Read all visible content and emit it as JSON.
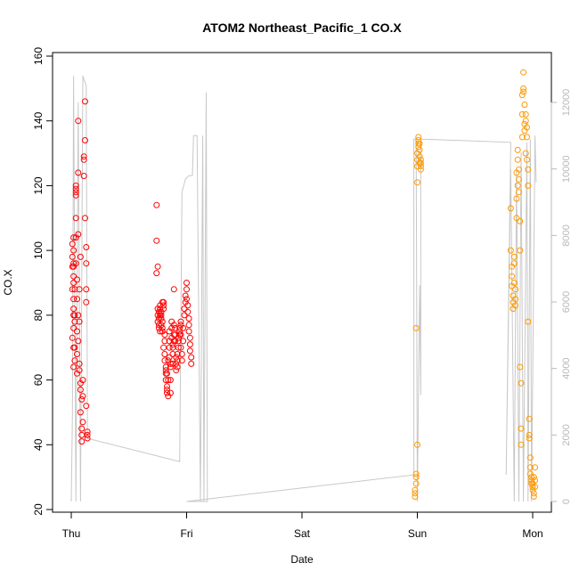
{
  "chart_data": {
    "type": "scatter",
    "title": "ATOM2 Northeast_Pacific_1 CO.X",
    "xlabel": "Date",
    "ylabel": "CO.X",
    "x_ticks": [
      "Thu",
      "Fri",
      "Sat",
      "Sun",
      "Mon"
    ],
    "ylim": [
      20,
      160
    ],
    "y_ticks": [
      20,
      40,
      60,
      80,
      100,
      120,
      140,
      160
    ],
    "y2lim": [
      0,
      13000
    ],
    "y2_ticks": [
      0,
      2000,
      4000,
      6000,
      8000,
      10000,
      12000
    ],
    "grid": false,
    "colors": {
      "series1": "#ff0000",
      "series2": "#ff9900",
      "altitude": "#c8c8c8",
      "frame": "#000000",
      "right_axis": "#b8b8b8"
    },
    "series": [
      {
        "x": [
          0.01,
          0.01,
          0.01,
          0.01,
          0.01,
          0.02,
          0.02,
          0.02,
          0.02,
          0.02,
          0.02,
          0.02,
          0.02,
          0.02,
          0.02,
          0.02,
          0.02,
          0.03,
          0.03,
          0.03,
          0.03,
          0.03,
          0.04,
          0.04,
          0.04,
          0.04,
          0.04,
          0.04,
          0.04,
          0.05,
          0.05,
          0.05,
          0.05,
          0.05,
          0.06,
          0.06,
          0.06,
          0.06,
          0.06,
          0.07,
          0.07,
          0.07,
          0.07,
          0.08,
          0.08,
          0.08,
          0.08,
          0.09,
          0.09,
          0.09,
          0.09,
          0.1,
          0.1,
          0.1,
          0.11,
          0.11,
          0.11,
          0.12,
          0.12,
          0.12,
          0.13,
          0.13,
          0.13,
          0.13,
          0.13,
          0.14,
          0.14,
          0.14
        ],
        "y": [
          102,
          98,
          95,
          88,
          73,
          64,
          70,
          95,
          104,
          80,
          76,
          85,
          90,
          92,
          96,
          100,
          82,
          66,
          70,
          78,
          80,
          88,
          118,
          119,
          117,
          120,
          110,
          104,
          96,
          75,
          62,
          68,
          85,
          91,
          124,
          140,
          105,
          80,
          72,
          63,
          65,
          78,
          88,
          98,
          59,
          57,
          50,
          54,
          45,
          43,
          41,
          60,
          55,
          47,
          129,
          128,
          123,
          146,
          134,
          110,
          101,
          96,
          88,
          84,
          52,
          43,
          44,
          42
        ]
      },
      {
        "x": [
          0.74,
          0.74,
          0.74,
          0.75,
          0.75,
          0.75,
          0.75,
          0.76,
          0.76,
          0.76,
          0.76,
          0.77,
          0.77,
          0.77,
          0.77,
          0.78,
          0.78,
          0.78,
          0.78,
          0.79,
          0.79,
          0.79,
          0.79,
          0.8,
          0.8,
          0.8,
          0.8,
          0.81,
          0.81,
          0.81,
          0.81,
          0.82,
          0.82,
          0.82,
          0.82,
          0.83,
          0.83,
          0.83,
          0.83,
          0.84,
          0.84,
          0.84,
          0.85,
          0.85,
          0.85,
          0.85,
          0.86,
          0.86,
          0.86,
          0.86,
          0.87,
          0.87,
          0.87,
          0.88,
          0.88,
          0.88,
          0.88,
          0.89,
          0.89,
          0.89,
          0.89,
          0.9,
          0.9,
          0.9,
          0.91,
          0.91,
          0.91,
          0.92,
          0.92,
          0.92,
          0.93,
          0.93,
          0.93,
          0.94,
          0.94,
          0.94,
          0.95,
          0.95,
          0.95,
          0.95,
          0.96,
          0.96,
          0.97,
          0.97,
          0.98,
          0.98,
          0.99,
          0.99,
          1.0,
          1.0,
          1.0,
          1.01,
          1.01,
          1.02,
          1.02,
          1.02,
          1.03,
          1.03,
          1.03,
          1.04,
          1.04
        ],
        "y": [
          114,
          103,
          93,
          82,
          80,
          78,
          95,
          81,
          77,
          76,
          79,
          80,
          82,
          83,
          75,
          77,
          79,
          81,
          80,
          84,
          78,
          76,
          75,
          82,
          83,
          84,
          70,
          68,
          66,
          72,
          74,
          64,
          62,
          60,
          63,
          58,
          57,
          56,
          62,
          66,
          55,
          60,
          67,
          70,
          72,
          75,
          56,
          60,
          64,
          65,
          76,
          78,
          73,
          70,
          68,
          65,
          71,
          74,
          72,
          77,
          88,
          76,
          74,
          72,
          65,
          63,
          67,
          64,
          66,
          68,
          70,
          72,
          73,
          74,
          75,
          76,
          77,
          78,
          74,
          70,
          66,
          68,
          72,
          76,
          80,
          82,
          84,
          86,
          88,
          90,
          85,
          83,
          81,
          79,
          77,
          75,
          73,
          71,
          69,
          67,
          65
        ]
      },
      {
        "x": [
          2.98,
          2.98,
          2.98,
          2.99,
          2.99,
          2.99,
          2.99,
          3.0,
          3.0,
          3.0,
          3.0,
          3.0,
          3.01,
          3.01,
          3.01,
          3.01,
          3.02,
          3.02,
          3.02,
          3.02,
          3.03,
          3.03,
          3.03,
          3.03
        ],
        "y": [
          24,
          25,
          26,
          28,
          30,
          31,
          76,
          40,
          121,
          126,
          128,
          130,
          132,
          133,
          134,
          135,
          127,
          129,
          131,
          133,
          125,
          126,
          127,
          128
        ]
      },
      {
        "x": [
          3.81,
          3.81,
          3.82,
          3.82,
          3.82,
          3.83,
          3.83,
          3.83,
          3.84,
          3.84,
          3.84,
          3.85,
          3.85,
          3.85,
          3.86,
          3.86,
          3.86,
          3.87,
          3.87,
          3.87,
          3.88,
          3.88,
          3.88,
          3.89,
          3.89,
          3.89,
          3.9,
          3.9,
          3.9,
          3.91,
          3.91,
          3.91,
          3.92,
          3.92,
          3.92,
          3.93,
          3.93,
          3.93,
          3.94,
          3.94,
          3.94,
          3.95,
          3.95,
          3.95,
          3.96,
          3.96,
          3.96,
          3.97,
          3.97,
          3.97,
          3.98,
          3.98,
          3.98,
          3.99,
          3.99,
          3.99,
          4.0,
          4.0,
          4.0,
          4.01,
          4.01,
          4.01,
          4.02,
          4.02,
          4.02
        ],
        "y": [
          113,
          100,
          95,
          92,
          89,
          86,
          84,
          82,
          90,
          96,
          98,
          88,
          85,
          83,
          110,
          116,
          124,
          128,
          131,
          120,
          125,
          122,
          118,
          109,
          100,
          64,
          59,
          45,
          40,
          135,
          142,
          148,
          150,
          155,
          149,
          145,
          139,
          137,
          140,
          142,
          130,
          128,
          135,
          138,
          125,
          120,
          78,
          48,
          43,
          42,
          36,
          33,
          31,
          30,
          29,
          28,
          27,
          26,
          28,
          30,
          25,
          24,
          27,
          29,
          33
        ]
      }
    ],
    "altitude_ylabel_right": ""
  }
}
